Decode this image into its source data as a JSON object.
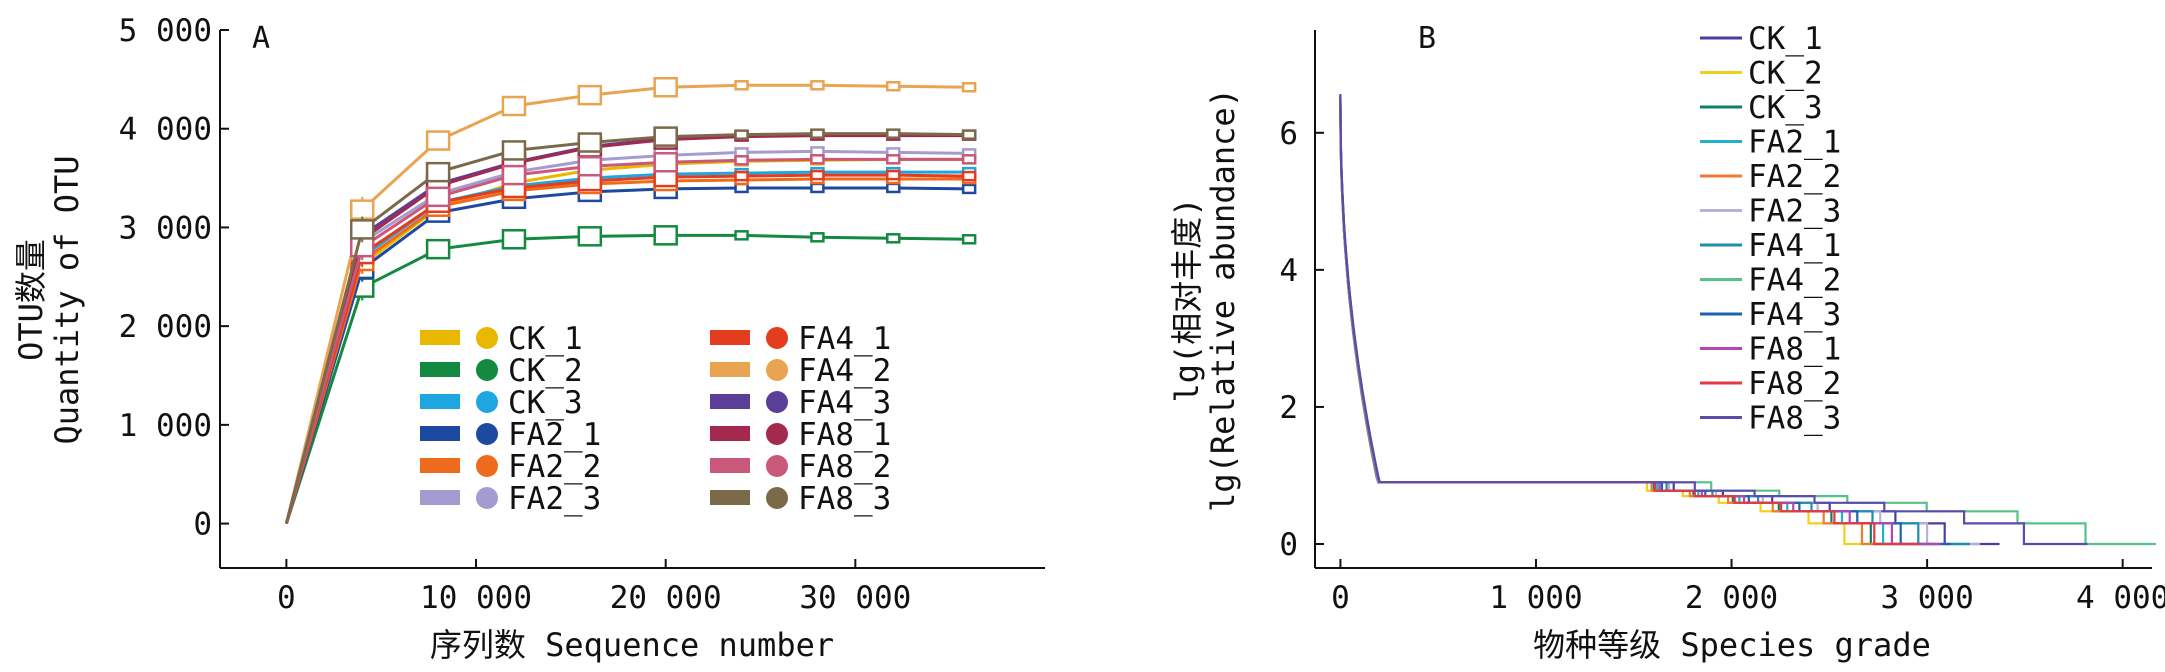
{
  "chart_data": [
    {
      "panel": "A",
      "type": "line",
      "ylabel_cn": "OTU数量",
      "ylabel_en": "Quantity of OTU",
      "xlabel": "序列数 Sequence number",
      "x_ticks": [
        "0",
        "10 000",
        "20 000",
        "30 000"
      ],
      "y_ticks": [
        "0",
        "1 000",
        "2 000",
        "3 000",
        "4 000",
        "5 000"
      ],
      "xlim": [
        -3500,
        40000
      ],
      "ylim": [
        -450,
        5000
      ],
      "grid": false,
      "legend_position": "lower-center",
      "x": [
        0,
        4000,
        8000,
        12000,
        16000,
        20000,
        24000,
        28000,
        32000,
        36000
      ],
      "series": [
        {
          "name": "CK_1",
          "color": "#e8b800",
          "values": [
            0,
            2620,
            3200,
            3450,
            3580,
            3640,
            3670,
            3680,
            3690,
            3690
          ]
        },
        {
          "name": "CK_2",
          "color": "#138a40",
          "values": [
            0,
            2390,
            2780,
            2880,
            2910,
            2920,
            2920,
            2900,
            2890,
            2880
          ]
        },
        {
          "name": "CK_3",
          "color": "#1ea6e0",
          "values": [
            0,
            2700,
            3250,
            3420,
            3500,
            3540,
            3550,
            3560,
            3560,
            3560
          ]
        },
        {
          "name": "FA2_1",
          "color": "#1d4aa0",
          "values": [
            0,
            2580,
            3150,
            3290,
            3360,
            3390,
            3400,
            3400,
            3400,
            3390
          ]
        },
        {
          "name": "FA2_2",
          "color": "#ee6a1c",
          "values": [
            0,
            2660,
            3210,
            3370,
            3440,
            3470,
            3480,
            3490,
            3490,
            3490
          ]
        },
        {
          "name": "FA2_3",
          "color": "#a69bd0",
          "values": [
            0,
            2850,
            3340,
            3560,
            3680,
            3730,
            3760,
            3770,
            3760,
            3750
          ]
        },
        {
          "name": "FA4_1",
          "color": "#e43c1e",
          "values": [
            0,
            2730,
            3250,
            3400,
            3470,
            3510,
            3520,
            3530,
            3530,
            3520
          ]
        },
        {
          "name": "FA4_2",
          "color": "#e9a451",
          "values": [
            0,
            3180,
            3880,
            4230,
            4340,
            4420,
            4440,
            4440,
            4430,
            4420
          ]
        },
        {
          "name": "FA4_3",
          "color": "#5b3e98",
          "values": [
            0,
            2920,
            3440,
            3660,
            3820,
            3900,
            3930,
            3940,
            3940,
            3940
          ]
        },
        {
          "name": "FA8_1",
          "color": "#a32a4e",
          "values": [
            0,
            2880,
            3420,
            3650,
            3810,
            3890,
            3920,
            3930,
            3930,
            3930
          ]
        },
        {
          "name": "FA8_2",
          "color": "#c9587a",
          "values": [
            0,
            2800,
            3310,
            3530,
            3620,
            3660,
            3680,
            3690,
            3690,
            3690
          ]
        },
        {
          "name": "FA8_3",
          "color": "#7b6a4a",
          "values": [
            0,
            2980,
            3560,
            3780,
            3860,
            3920,
            3940,
            3950,
            3950,
            3940
          ]
        }
      ]
    },
    {
      "panel": "B",
      "type": "line",
      "ylabel_cn": "lg(相对丰度)",
      "ylabel_en": "lg(Relative abundance)",
      "xlabel": "物种等级 Species grade",
      "x_ticks": [
        "0",
        "1 000",
        "2 000",
        "3 000",
        "4 000"
      ],
      "y_ticks": [
        "0",
        "2",
        "4",
        "6"
      ],
      "xlim": [
        -130,
        4150
      ],
      "ylim": [
        -0.35,
        7.5
      ],
      "grid": false,
      "legend_position": "top-right",
      "series": [
        {
          "name": "CK_1",
          "color": "#4b3d9e",
          "max_rank": 3300
        },
        {
          "name": "CK_2",
          "color": "#f2cf1a",
          "max_rank": 2730
        },
        {
          "name": "CK_3",
          "color": "#0f7f6a",
          "max_rank": 2880
        },
        {
          "name": "FA2_1",
          "color": "#22b0cf",
          "max_rank": 2950
        },
        {
          "name": "FA2_2",
          "color": "#f07a30",
          "max_rank": 2830
        },
        {
          "name": "FA2_3",
          "color": "#b7b0dc",
          "max_rank": 3200
        },
        {
          "name": "FA4_1",
          "color": "#1a8fb0",
          "max_rank": 3150
        },
        {
          "name": "FA4_2",
          "color": "#58c08a",
          "max_rank": 4100
        },
        {
          "name": "FA4_3",
          "color": "#1b62b0",
          "max_rank": 3050
        },
        {
          "name": "FA8_1",
          "color": "#b446b4",
          "max_rank": 3000
        },
        {
          "name": "FA8_2",
          "color": "#e23a40",
          "max_rank": 2900
        },
        {
          "name": "FA8_3",
          "color": "#5a4cab",
          "max_rank": 3750
        }
      ]
    }
  ]
}
